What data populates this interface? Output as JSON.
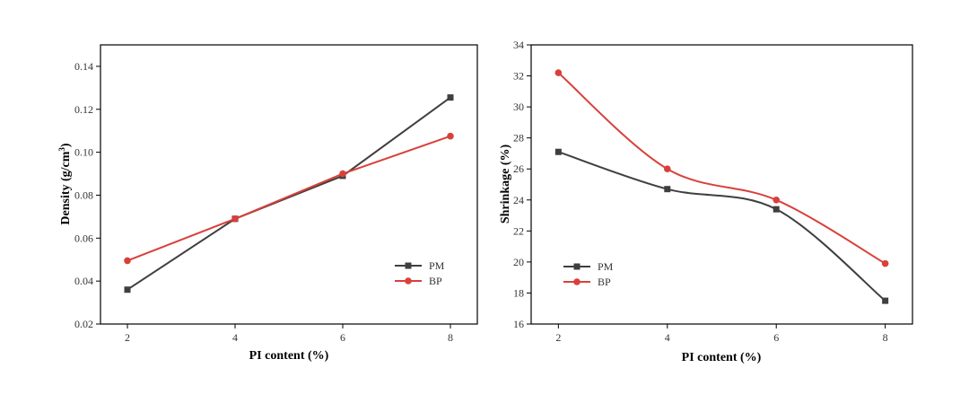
{
  "chart_data": [
    {
      "type": "line",
      "title": "",
      "xlabel": "PI content (%)",
      "ylabel": "Density (g/cm",
      "ylabel_sup": "3",
      "ylabel_tail": ")",
      "x": [
        2,
        4,
        6,
        8
      ],
      "xlim": [
        1.5,
        8.5
      ],
      "xticks": [
        2,
        4,
        6,
        8
      ],
      "ylim": [
        0.02,
        0.15
      ],
      "yticks": [
        0.02,
        0.04,
        0.06,
        0.08,
        0.1,
        0.12,
        0.14
      ],
      "ytick_labels": [
        "0.02",
        "0.04",
        "0.06",
        "0.08",
        "0.10",
        "0.12",
        "0.14"
      ],
      "smooth": false,
      "legend_position": "lower-right",
      "series": [
        {
          "name": "PM",
          "marker": "square",
          "color": "#3f3f3f",
          "values": [
            0.036,
            0.069,
            0.089,
            0.1255
          ]
        },
        {
          "name": "BP",
          "marker": "circle",
          "color": "#d9403a",
          "values": [
            0.0495,
            0.069,
            0.09,
            0.1075
          ]
        }
      ]
    },
    {
      "type": "line",
      "title": "",
      "xlabel": "PI content (%)",
      "ylabel": "Shrinkage (%)",
      "ylabel_sup": "",
      "ylabel_tail": "",
      "x": [
        2,
        4,
        6,
        8
      ],
      "xlim": [
        1.5,
        8.5
      ],
      "xticks": [
        2,
        4,
        6,
        8
      ],
      "ylim": [
        16,
        34
      ],
      "yticks": [
        16,
        18,
        20,
        22,
        24,
        26,
        28,
        30,
        32,
        34
      ],
      "ytick_labels": [
        "16",
        "18",
        "20",
        "22",
        "24",
        "26",
        "28",
        "30",
        "32",
        "34"
      ],
      "smooth": true,
      "legend_position": "lower-left",
      "series": [
        {
          "name": "PM",
          "marker": "square",
          "color": "#3f3f3f",
          "values": [
            27.1,
            24.7,
            23.4,
            17.5
          ]
        },
        {
          "name": "BP",
          "marker": "circle",
          "color": "#d9403a",
          "values": [
            32.2,
            26.0,
            24.0,
            19.9
          ]
        }
      ]
    }
  ]
}
